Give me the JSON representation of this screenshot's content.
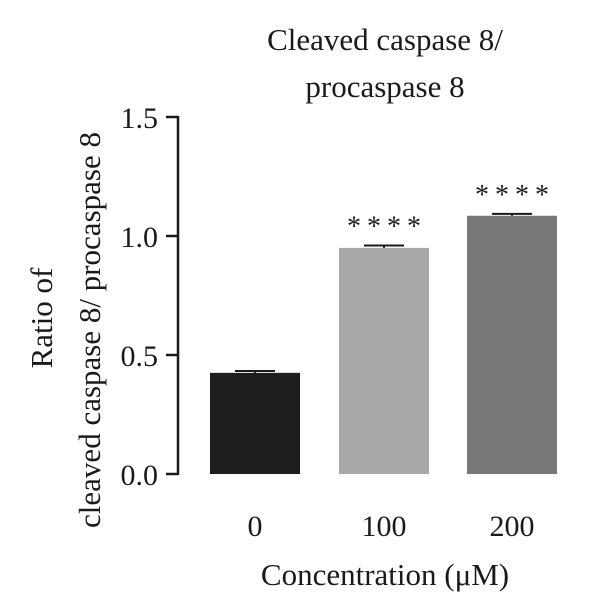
{
  "chart_data": {
    "type": "bar",
    "title_lines": [
      "Cleaved caspase 8/",
      "procaspase 8"
    ],
    "ylabel_lines": [
      "Ratio of",
      "cleaved caspase 8/ procaspase 8"
    ],
    "xlabel": "Concentration (μM)",
    "categories": [
      "0",
      "100",
      "200"
    ],
    "values": [
      0.425,
      0.95,
      1.085
    ],
    "errors": [
      0.008,
      0.01,
      0.008
    ],
    "significance": [
      "",
      "****",
      "****"
    ],
    "ylim": [
      0,
      1.5
    ],
    "yticks": [
      0.0,
      0.5,
      1.0,
      1.5
    ],
    "ytick_labels": [
      "0.0",
      "0.5",
      "1.0",
      "1.5"
    ],
    "colors": [
      "#1e1e1e",
      "#a8a8a8",
      "#787878"
    ],
    "grid": false,
    "legend": "none"
  }
}
